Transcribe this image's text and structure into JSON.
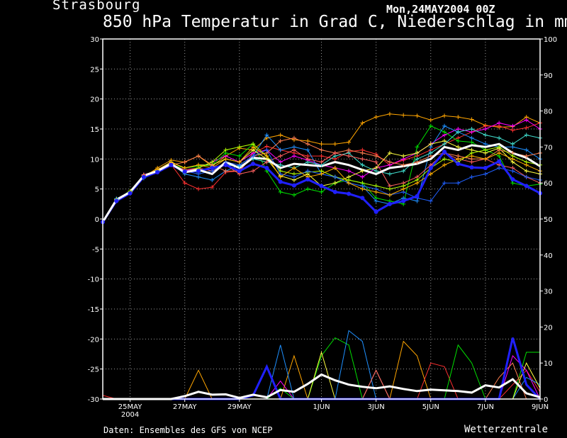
{
  "header": {
    "location": "Strasbourg",
    "run_time": "Mon,24MAY2004 00Z",
    "title": "850 hPa Temperatur in Grad C, Niederschlag in mm"
  },
  "footer": {
    "credit": "Daten: Ensembles des GFS von NCEP",
    "brand": "Wetterzentrale"
  },
  "colors": {
    "background": "#000000",
    "mean": "#ffffff",
    "control": "#2020ff",
    "grid": "#9a9a9a",
    "members": [
      "#ffa500",
      "#ff3030",
      "#ff00ff",
      "#00e000",
      "#1e90ff",
      "#ffff40",
      "#ff7f50",
      "#40e0d0",
      "#ff6060",
      "#b0ff00",
      "#2060ff",
      "#ffb000"
    ]
  },
  "chart_data": {
    "type": "line",
    "x_unit": "days since run start (24MAY2004 00Z)",
    "xlim": [
      0,
      16
    ],
    "x_ticks": [
      {
        "x": 1,
        "label": "25MAY",
        "sub": "2004"
      },
      {
        "x": 3,
        "label": "27MAY"
      },
      {
        "x": 5,
        "label": "29MAY"
      },
      {
        "x": 8,
        "label": "1JUN"
      },
      {
        "x": 10,
        "label": "3JUN"
      },
      {
        "x": 12,
        "label": "5JUN"
      },
      {
        "x": 14,
        "label": "7JUN"
      },
      {
        "x": 16,
        "label": "9JUN"
      }
    ],
    "y_left": {
      "min": -30,
      "max": 30,
      "ticks": [
        30,
        25,
        20,
        15,
        10,
        5,
        0,
        -5,
        -10,
        -15,
        -20,
        -25,
        -30
      ],
      "label": ""
    },
    "y_right": {
      "min": 0,
      "max": 100,
      "ticks": [
        100,
        90,
        80,
        70,
        60,
        50,
        40,
        30,
        20,
        10,
        0
      ],
      "label": ""
    },
    "x": [
      0,
      0.5,
      1,
      1.5,
      2,
      2.5,
      3,
      3.5,
      4,
      4.5,
      5,
      5.5,
      6,
      6.5,
      7,
      7.5,
      8,
      8.5,
      9,
      9.5,
      10,
      10.5,
      11,
      11.5,
      12,
      12.5,
      13,
      13.5,
      14,
      14.5,
      15,
      15.5,
      16
    ],
    "temperature": {
      "mean": [
        -0.5,
        3.2,
        4.5,
        7.2,
        8.0,
        9.2,
        7.8,
        8.2,
        7.5,
        9.5,
        8.5,
        10.2,
        10.0,
        8.5,
        9.2,
        9.0,
        8.8,
        9.5,
        9.0,
        8.2,
        7.5,
        8.5,
        8.8,
        9.2,
        10.0,
        12.0,
        11.5,
        12.3,
        12.0,
        12.5,
        11.0,
        10.2,
        8.8
      ],
      "control": [
        -0.5,
        3.0,
        4.3,
        7.0,
        7.8,
        9.0,
        7.9,
        8.0,
        8.5,
        9.0,
        8.0,
        9.2,
        8.5,
        6.2,
        5.6,
        6.6,
        5.5,
        4.5,
        4.2,
        3.5,
        1.2,
        2.5,
        3.0,
        3.8,
        8.5,
        11.2,
        9.2,
        8.6,
        8.5,
        9.6,
        6.6,
        5.5,
        4.3
      ],
      "members": [
        [
          -0.5,
          3.0,
          4.4,
          7.0,
          8.5,
          9.8,
          9.5,
          10.5,
          8.8,
          10.5,
          11.8,
          11.5,
          13.5,
          14.0,
          13.2,
          13.0,
          12.5,
          12.5,
          12.8,
          16.0,
          17.0,
          17.5,
          17.3,
          17.2,
          16.5,
          17.2,
          17.0,
          16.6,
          15.6,
          15.3,
          15.4,
          17.0,
          16.0
        ],
        [
          -0.5,
          3.3,
          4.6,
          7.3,
          8.1,
          9.1,
          6.0,
          5.0,
          5.3,
          7.8,
          8.0,
          11.0,
          12.1,
          11.5,
          11.0,
          10.5,
          10.5,
          10.0,
          11.2,
          11.5,
          10.8,
          9.0,
          9.8,
          10.5,
          11.5,
          12.5,
          13.5,
          14.5,
          15.5,
          15.5,
          14.8,
          15.2,
          16.0
        ],
        [
          -0.5,
          3.1,
          4.5,
          7.4,
          8.0,
          9.3,
          8.0,
          8.5,
          9.5,
          10.5,
          9.5,
          11.0,
          11.5,
          9.5,
          10.5,
          9.8,
          9.0,
          8.5,
          8.0,
          7.0,
          8.5,
          9.0,
          10.0,
          11.0,
          12.5,
          14.0,
          15.0,
          14.5,
          15.0,
          16.0,
          15.5,
          16.5,
          15.0
        ],
        [
          -0.5,
          3.2,
          4.7,
          7.1,
          7.9,
          9.0,
          8.5,
          8.8,
          9.0,
          11.0,
          10.5,
          12.5,
          8.0,
          4.5,
          4.0,
          5.0,
          4.5,
          6.0,
          6.5,
          6.0,
          3.5,
          3.0,
          2.5,
          12.0,
          15.5,
          14.5,
          13.0,
          12.8,
          11.5,
          10.5,
          6.0,
          5.5,
          5.8
        ],
        [
          -0.5,
          3.4,
          4.5,
          6.8,
          7.8,
          9.2,
          7.5,
          7.0,
          6.5,
          8.0,
          9.0,
          10.5,
          14.0,
          11.5,
          12.0,
          11.5,
          7.5,
          7.0,
          6.0,
          5.5,
          3.0,
          2.5,
          3.5,
          3.0,
          12.0,
          15.5,
          14.5,
          13.5,
          12.5,
          12.0,
          12.0,
          11.5,
          10.0
        ],
        [
          -0.5,
          3.0,
          4.3,
          7.3,
          8.2,
          9.5,
          8.5,
          9.0,
          9.0,
          10.0,
          9.5,
          11.5,
          10.0,
          7.2,
          6.5,
          7.5,
          5.5,
          6.0,
          7.0,
          8.0,
          8.5,
          11.0,
          10.5,
          11.0,
          12.5,
          13.0,
          12.0,
          11.5,
          11.0,
          11.8,
          9.5,
          8.0,
          7.5
        ],
        [
          -0.5,
          3.2,
          4.5,
          7.2,
          8.0,
          9.0,
          9.5,
          10.5,
          9.0,
          8.0,
          8.0,
          10.5,
          11.0,
          13.0,
          13.5,
          12.5,
          11.5,
          11.0,
          11.5,
          11.0,
          10.5,
          9.5,
          9.0,
          9.5,
          10.5,
          11.0,
          10.5,
          10.0,
          10.0,
          11.5,
          11.0,
          10.5,
          11.0
        ],
        [
          -0.5,
          3.3,
          4.6,
          7.0,
          8.1,
          9.2,
          8.0,
          7.8,
          8.5,
          9.0,
          8.8,
          10.0,
          9.5,
          9.0,
          8.5,
          9.5,
          9.0,
          10.5,
          11.0,
          9.0,
          8.0,
          7.5,
          8.0,
          10.0,
          11.0,
          12.5,
          14.5,
          15.0,
          14.0,
          13.5,
          12.5,
          14.0,
          13.5
        ],
        [
          -0.5,
          3.1,
          4.4,
          7.1,
          7.9,
          9.1,
          8.2,
          8.5,
          8.0,
          9.0,
          7.5,
          8.0,
          9.5,
          10.5,
          11.5,
          10.0,
          9.5,
          11.0,
          10.5,
          10.0,
          9.5,
          5.5,
          6.0,
          7.0,
          9.0,
          11.0,
          10.0,
          9.5,
          10.0,
          9.0,
          8.5,
          7.0,
          6.0
        ],
        [
          -0.5,
          3.2,
          4.5,
          7.2,
          8.0,
          9.2,
          7.8,
          8.5,
          9.5,
          11.5,
          12.0,
          12.5,
          10.5,
          8.0,
          7.5,
          7.8,
          8.0,
          7.0,
          6.5,
          6.0,
          5.5,
          5.0,
          5.5,
          6.5,
          8.5,
          10.0,
          9.5,
          11.0,
          11.5,
          12.0,
          10.5,
          9.5,
          9.0
        ],
        [
          -0.5,
          3.0,
          4.4,
          7.0,
          8.0,
          9.0,
          8.0,
          7.5,
          8.0,
          9.5,
          9.0,
          10.5,
          11.5,
          7.5,
          7.0,
          8.0,
          7.5,
          7.0,
          6.0,
          5.5,
          5.0,
          4.0,
          4.5,
          3.5,
          3.0,
          6.0,
          6.0,
          7.0,
          7.5,
          8.5,
          8.0,
          7.0,
          6.5
        ],
        [
          -0.5,
          3.2,
          4.6,
          7.3,
          8.2,
          9.4,
          8.5,
          9.0,
          8.5,
          10.0,
          9.5,
          12.0,
          10.5,
          7.0,
          8.5,
          7.0,
          7.5,
          8.5,
          6.0,
          5.0,
          4.5,
          4.0,
          5.0,
          6.0,
          7.5,
          9.0,
          10.0,
          10.5,
          10.0,
          11.0,
          10.0,
          9.0,
          8.0
        ]
      ]
    },
    "precipitation": {
      "mean": [
        0,
        0,
        0,
        0,
        0,
        0,
        0.8,
        2,
        1.2,
        1.3,
        0.3,
        1.2,
        0.5,
        2.5,
        2.0,
        4.2,
        6.8,
        5.2,
        4,
        3.4,
        3,
        3.5,
        2.8,
        2.2,
        2.6,
        2.4,
        2.2,
        1.8,
        3.8,
        3.2,
        5.5,
        1.6,
        0.5
      ],
      "control": [
        0,
        0,
        0,
        0,
        0,
        0,
        0,
        0,
        0,
        0,
        0,
        1,
        9,
        0,
        0,
        0,
        0,
        0,
        0,
        0,
        0,
        0,
        0,
        0,
        0,
        0,
        0,
        0,
        0,
        0,
        17,
        4,
        0
      ],
      "members": [
        [
          0,
          0,
          0,
          0,
          0,
          0,
          0,
          8,
          0,
          0,
          0,
          0,
          0,
          0,
          12,
          0,
          0,
          0,
          0,
          0,
          0,
          0,
          16,
          12,
          0,
          0,
          0,
          0,
          0,
          0,
          0,
          0,
          0
        ],
        [
          1,
          0,
          0,
          0,
          0,
          0,
          0,
          0,
          0,
          0,
          0,
          0,
          0,
          0,
          0,
          0,
          0,
          0,
          0,
          0,
          0,
          0,
          0,
          0,
          10,
          9,
          0,
          0,
          0,
          0,
          4,
          8,
          2
        ],
        [
          0,
          0,
          0,
          0,
          0,
          0,
          0,
          0,
          0,
          0,
          0,
          0,
          0,
          5,
          0,
          0,
          0,
          0,
          0,
          0,
          8,
          0,
          0,
          0,
          0,
          0,
          0,
          0,
          0,
          0,
          12,
          8,
          0
        ],
        [
          0,
          0,
          0,
          0,
          0,
          0,
          0,
          0,
          0,
          0,
          0,
          0,
          0,
          3,
          0,
          0,
          12,
          17,
          15,
          0,
          0,
          0,
          0,
          0,
          0,
          0,
          15,
          10,
          0,
          0,
          0,
          13,
          13
        ],
        [
          0,
          0,
          0,
          0,
          0,
          0,
          0,
          0,
          0,
          0,
          0,
          0,
          0,
          15,
          0,
          0,
          0,
          0,
          19,
          16,
          0,
          0,
          0,
          0,
          0,
          0,
          0,
          0,
          0,
          0,
          0,
          6,
          4
        ],
        [
          0,
          0,
          0,
          0,
          0,
          0,
          0,
          0,
          0,
          0,
          0,
          0,
          0,
          0,
          0,
          0,
          13,
          0,
          0,
          0,
          0,
          0,
          0,
          0,
          0,
          0,
          0,
          0,
          0,
          0,
          0,
          10,
          3
        ],
        [
          0,
          0,
          0,
          0,
          0,
          0,
          0,
          0,
          0,
          0,
          0,
          0,
          0,
          0,
          0,
          0,
          0,
          0,
          0,
          0,
          8,
          0,
          0,
          0,
          0,
          0,
          0,
          0,
          0,
          6,
          10,
          0,
          0
        ],
        [
          0,
          0,
          0,
          0,
          0,
          0,
          0,
          0,
          0,
          0,
          0,
          0,
          0,
          0,
          0,
          0,
          0,
          0,
          0,
          0,
          0,
          0,
          0,
          0,
          0,
          0,
          0,
          0,
          0,
          0,
          0,
          0,
          0
        ],
        [
          0,
          0,
          0,
          0,
          0,
          0,
          0,
          0,
          0,
          0,
          0,
          0,
          0,
          0,
          0,
          0,
          0,
          0,
          0,
          0,
          0,
          0,
          0,
          0,
          0,
          0,
          0,
          0,
          0,
          0,
          0,
          0,
          0
        ],
        [
          0,
          0,
          0,
          0,
          0,
          0,
          0,
          0,
          0,
          0,
          0,
          0,
          0,
          0,
          0,
          0,
          0,
          0,
          0,
          0,
          0,
          0,
          0,
          0,
          0,
          0,
          0,
          0,
          0,
          0,
          0,
          0,
          0
        ],
        [
          0,
          0,
          0,
          0,
          0,
          0,
          0,
          0,
          0,
          0,
          0,
          0,
          0,
          0,
          0,
          0,
          0,
          0,
          0,
          0,
          0,
          0,
          0,
          0,
          0,
          0,
          0,
          0,
          0,
          0,
          0,
          0,
          0
        ],
        [
          0,
          0,
          0,
          0,
          0,
          0,
          0,
          0,
          0,
          0,
          0,
          0,
          0,
          0,
          0,
          0,
          0,
          0,
          0,
          0,
          0,
          0,
          0,
          0,
          0,
          0,
          0,
          0,
          0,
          0,
          0,
          0,
          0
        ]
      ]
    }
  }
}
